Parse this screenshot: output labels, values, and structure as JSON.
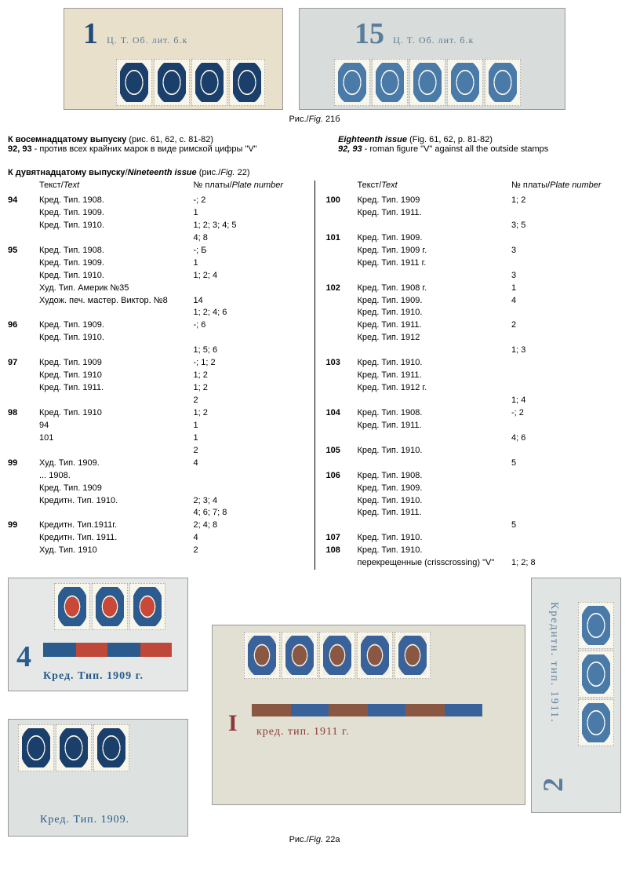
{
  "fig21b": {
    "left_plate": "1",
    "right_plate": "15",
    "imprint": "Ц. Т. Об. лит. б.к",
    "caption_ru": "Рис.",
    "caption_en": "Fig.",
    "caption_num": "21б"
  },
  "eighteenth": {
    "left_title": "К восемнадцатому выпуску",
    "left_ref": " (рис. 61, 62, с. 81-82)",
    "left_nums": "92, 93",
    "left_text": " - против всех крайних марок в виде римской цифры \"V\"",
    "right_title": "Eighteenth issue",
    "right_ref": " (Fig. 61, 62, p. 81-82)",
    "right_nums": "92, 93",
    "right_text": " - roman figure \"V\" against all the outside stamps"
  },
  "nineteenth": {
    "title_ru": "К дувятнадцатому выпуску",
    "title_en": "Nineteenth issue",
    "title_ref": "   (рис./",
    "title_fig": "Fig.",
    "title_num": " 22)",
    "header_text_ru": "Текст",
    "header_text_en": "Text",
    "header_plate_ru": "№ платы",
    "header_plate_en": "Plate number"
  },
  "left_rows": [
    {
      "n": "94",
      "t": "Кред. Тип. 1908.",
      "p": "-; 2"
    },
    {
      "n": "",
      "t": "Кред. Тип. 1909.",
      "p": "1"
    },
    {
      "n": "",
      "t": "Кред. Тип. 1910.",
      "p": "1; 2; 3; 4; 5"
    },
    {
      "n": "",
      "t": "",
      "p": "4; 8"
    },
    {
      "n": "95",
      "t": "Кред. Тип. 1908.",
      "p": "-; Б"
    },
    {
      "n": "",
      "t": "Кред. Тип. 1909.",
      "p": "1"
    },
    {
      "n": "",
      "t": "Кред. Тип. 1910.",
      "p": "1; 2; 4"
    },
    {
      "n": "",
      "t": "Худ. Тип. Америк №35",
      "p": ""
    },
    {
      "n": "",
      "t": "Худож. печ. мастер. Виктор. №8",
      "p": "14"
    },
    {
      "n": "",
      "t": "",
      "p": "1; 2; 4; 6"
    },
    {
      "n": "96",
      "t": "Кред. Тип. 1909.",
      "p": "-; 6"
    },
    {
      "n": "",
      "t": "Кред. Тип. 1910.",
      "p": ""
    },
    {
      "n": "",
      "t": "",
      "p": "1; 5; 6"
    },
    {
      "n": "97",
      "t": "Кред. Тип. 1909",
      "p": "-; 1; 2"
    },
    {
      "n": "",
      "t": "Кред. Тип. 1910",
      "p": "1; 2"
    },
    {
      "n": "",
      "t": "Кред. Тип. 1911.",
      "p": "1; 2"
    },
    {
      "n": "",
      "t": "",
      "p": "2"
    },
    {
      "n": "98",
      "t": "Кред. Тип. 1910",
      "p": "1; 2"
    },
    {
      "n": "",
      "t": "94",
      "p": "1"
    },
    {
      "n": "",
      "t": "101",
      "p": "1"
    },
    {
      "n": "",
      "t": "",
      "p": "2"
    },
    {
      "n": "99",
      "t": "Худ. Тип. 1909.",
      "p": "4"
    },
    {
      "n": "",
      "t": "... 1908.",
      "p": ""
    },
    {
      "n": "",
      "t": "Кред. Тип. 1909",
      "p": ""
    },
    {
      "n": "",
      "t": "Кредитн. Тип. 1910.",
      "p": "2; 3; 4"
    },
    {
      "n": "",
      "t": "",
      "p": "4; 6; 7; 8"
    },
    {
      "n": "99",
      "t": "Кредитн. Тип.1911г.",
      "p": "2; 4; 8"
    },
    {
      "n": "",
      "t": "Кредитн. Тип. 1911.",
      "p": "4"
    },
    {
      "n": "",
      "t": "Худ. Тип. 1910",
      "p": "2"
    }
  ],
  "right_rows": [
    {
      "n": "100",
      "t": "Кред. Тип. 1909",
      "p": "1; 2"
    },
    {
      "n": "",
      "t": "Кред. Тип. 1911.",
      "p": ""
    },
    {
      "n": "",
      "t": "",
      "p": "3; 5"
    },
    {
      "n": "101",
      "t": "Кред. Тип. 1909.",
      "p": ""
    },
    {
      "n": "",
      "t": "Кред. Тип. 1909 г.",
      "p": "3"
    },
    {
      "n": "",
      "t": "Кред. Тип. 1911 г.",
      "p": ""
    },
    {
      "n": "",
      "t": "",
      "p": "3"
    },
    {
      "n": "102",
      "t": "Кред. Тип. 1908 г.",
      "p": "1"
    },
    {
      "n": "",
      "t": "Кред. Тип. 1909.",
      "p": "4"
    },
    {
      "n": "",
      "t": "Кред. Тип. 1910.",
      "p": ""
    },
    {
      "n": "",
      "t": "Кред. Тип. 1911.",
      "p": "2"
    },
    {
      "n": "",
      "t": "Кред. Тип. 1912",
      "p": ""
    },
    {
      "n": "",
      "t": "",
      "p": "1; 3"
    },
    {
      "n": "103",
      "t": "Кред. Тип. 1910.",
      "p": ""
    },
    {
      "n": "",
      "t": "Кред. Тип. 1911.",
      "p": ""
    },
    {
      "n": "",
      "t": "Кред. Тип. 1912 г.",
      "p": ""
    },
    {
      "n": "",
      "t": "",
      "p": "1; 4"
    },
    {
      "n": "104",
      "t": "Кред. Тип. 1908.",
      "p": "-; 2"
    },
    {
      "n": "",
      "t": "Кред. Тип. 1911.",
      "p": ""
    },
    {
      "n": "",
      "t": "",
      "p": "4; 6"
    },
    {
      "n": "105",
      "t": "Кред. Тип. 1910.",
      "p": ""
    },
    {
      "n": "",
      "t": "",
      "p": "5"
    },
    {
      "n": "106",
      "t": "Кред. Тип. 1908.",
      "p": ""
    },
    {
      "n": "",
      "t": "Кред. Тип. 1909.",
      "p": ""
    },
    {
      "n": "",
      "t": "Кред. Тип. 1910.",
      "p": ""
    },
    {
      "n": "",
      "t": "Кред. Тип. 1911.",
      "p": ""
    },
    {
      "n": "",
      "t": "",
      "p": "5"
    },
    {
      "n": "107",
      "t": "Кред. Тип. 1910.",
      "p": ""
    },
    {
      "n": "108",
      "t": "Кред. Тип. 1910.",
      "p": ""
    },
    {
      "n": "",
      "t": "перекрещенные (crisscrossing) \"V\"",
      "p": "1; 2; 8"
    }
  ],
  "bottom": {
    "bot1_num": "4",
    "bot1_caption": "Кред. Тип. 1909 г.",
    "bot2_caption": "Кред. Тип. 1909.",
    "bot3_num": "I",
    "bot3_caption": "кред. тип. 1911 г.",
    "bot4_caption": "Кредитн. тип. 1911.",
    "bot4_num": "2",
    "fig_ru": "Рис.",
    "fig_en": "Fig.",
    "fig_num": "22а"
  }
}
